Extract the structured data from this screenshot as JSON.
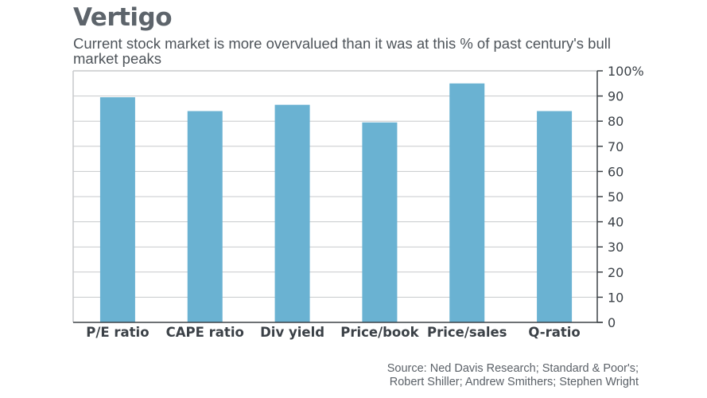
{
  "title": "Vertigo",
  "subtitle": "Current stock market is more overvalued than it was at this % of past century's bull market peaks",
  "source_line1": "Source: Ned Davis Research; Standard & Poor's;",
  "source_line2": "Robert Shiller; Andrew Smithers; Stephen Wright",
  "colors": {
    "bar": "#6ab2d2",
    "grid": "#c7c9cc",
    "axis": "#3d4247",
    "frame": "#c7c9cc"
  },
  "chart_data": {
    "type": "bar",
    "title": "Vertigo",
    "subtitle": "Current stock market is more overvalued than it was at this % of past century's bull market peaks",
    "categories": [
      "P/E ratio",
      "CAPE ratio",
      "Div yield",
      "Price/book",
      "Price/sales",
      "Q-ratio"
    ],
    "values": [
      89.5,
      84,
      86.5,
      79.5,
      95,
      84
    ],
    "ylim": [
      0,
      100
    ],
    "yticks": [
      0,
      10,
      20,
      30,
      40,
      50,
      60,
      70,
      80,
      90,
      100
    ],
    "ytick_labels": [
      "0",
      "10",
      "20",
      "30",
      "40",
      "50",
      "60",
      "70",
      "80",
      "90",
      "100%"
    ],
    "y_axis_side": "right",
    "grid": true
  }
}
